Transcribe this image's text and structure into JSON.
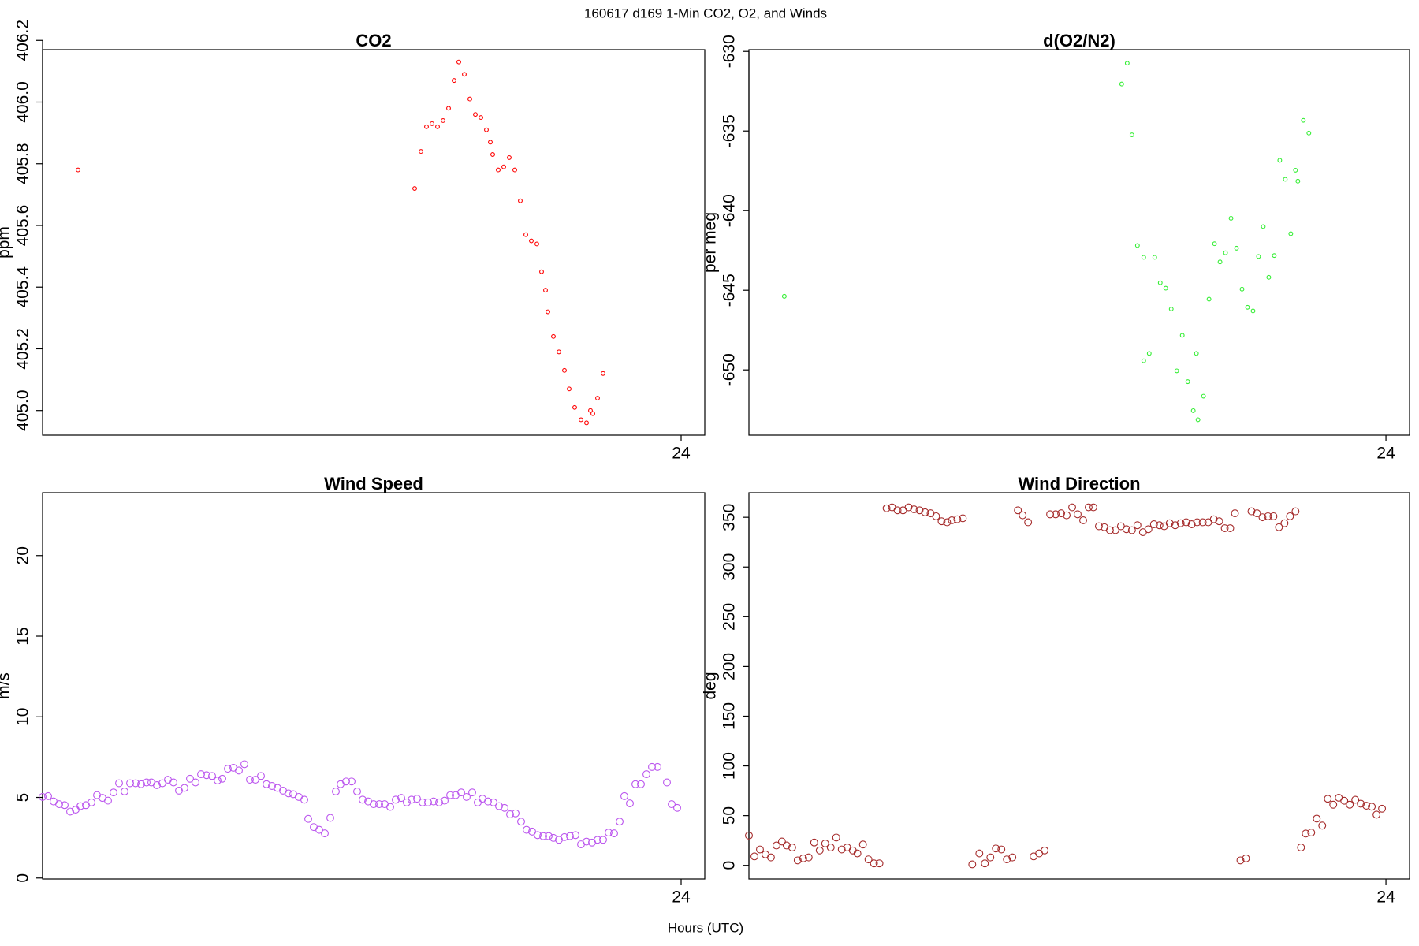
{
  "title": "160617   d169   1-Min CO2, O2, and Winds",
  "xlabel": "Hours (UTC)",
  "chart_data": [
    {
      "type": "scatter",
      "title": "CO2",
      "ylabel": "ppm",
      "color": "#ff0000",
      "xlim": [
        15.9,
        24.3
      ],
      "xticks": [
        24
      ],
      "ylim": [
        404.92,
        406.17
      ],
      "yticks": [
        {
          "value": 405,
          "label": "405.0"
        },
        405.2,
        405.4,
        405.6,
        405.8,
        {
          "value": 406,
          "label": "406.0"
        },
        406.2
      ],
      "x": [
        16.35,
        20.62,
        20.7,
        20.77,
        20.84,
        20.91,
        20.98,
        21.05,
        21.12,
        21.18,
        21.25,
        21.32,
        21.39,
        21.46,
        21.53,
        21.58,
        21.61,
        21.68,
        21.75,
        21.82,
        21.89,
        21.96,
        22.03,
        22.1,
        22.17,
        22.23,
        22.28,
        22.31,
        22.38,
        22.45,
        22.52,
        22.58,
        22.65,
        22.73,
        22.8,
        22.85,
        22.88,
        22.94,
        23.01
      ],
      "values": [
        405.78,
        405.72,
        405.84,
        405.92,
        405.93,
        405.92,
        405.94,
        405.98,
        406.07,
        406.13,
        406.09,
        406.01,
        405.96,
        405.95,
        405.91,
        405.87,
        405.83,
        405.78,
        405.79,
        405.82,
        405.78,
        405.68,
        405.57,
        405.55,
        405.54,
        405.45,
        405.39,
        405.32,
        405.24,
        405.19,
        405.13,
        405.07,
        405.01,
        404.97,
        404.96,
        405.0,
        404.99,
        405.04,
        405.12
      ]
    },
    {
      "type": "scatter",
      "title": "d(O2/N2)",
      "ylabel": "per meg",
      "color": "#33ee33",
      "xlim": [
        15.9,
        24.3
      ],
      "xticks": [
        24
      ],
      "ylim": [
        -654.1,
        -629.89
      ],
      "yticks": [
        -650,
        -645,
        -640,
        -635,
        -630
      ],
      "x": [
        16.35,
        20.64,
        20.71,
        20.77,
        20.84,
        20.92,
        20.92,
        20.99,
        21.06,
        21.13,
        21.2,
        21.27,
        21.34,
        21.41,
        21.48,
        21.55,
        21.59,
        21.61,
        21.68,
        21.75,
        21.82,
        21.89,
        21.96,
        22.03,
        22.1,
        22.17,
        22.24,
        22.31,
        22.38,
        22.44,
        22.51,
        22.58,
        22.65,
        22.72,
        22.79,
        22.85,
        22.88,
        22.95,
        23.02
      ],
      "values": [
        -645.38,
        -632.05,
        -630.74,
        -635.24,
        -642.19,
        -642.93,
        -649.43,
        -648.97,
        -642.93,
        -644.53,
        -644.87,
        -646.18,
        -650.06,
        -647.83,
        -650.74,
        -652.56,
        -648.97,
        -653.13,
        -651.65,
        -645.56,
        -642.08,
        -643.22,
        -642.65,
        -640.48,
        -642.36,
        -644.93,
        -646.07,
        -646.3,
        -642.88,
        -641.0,
        -644.19,
        -642.82,
        -636.84,
        -638.03,
        -641.45,
        -637.46,
        -638.15,
        -634.33,
        -635.13
      ]
    },
    {
      "type": "scatter",
      "title": "Wind Speed",
      "ylabel": "m/s",
      "color": "#bb55ee",
      "xlim": [
        15.9,
        24.3
      ],
      "xticks": [
        24
      ],
      "ylim": [
        -0.06,
        23.9
      ],
      "yticks": [
        0,
        5,
        10,
        15,
        20
      ],
      "x": [
        15.9,
        15.97,
        16.04,
        16.11,
        16.18,
        16.25,
        16.32,
        16.38,
        16.45,
        16.52,
        16.59,
        16.66,
        16.73,
        16.8,
        16.87,
        16.94,
        17.01,
        17.08,
        17.15,
        17.22,
        17.28,
        17.35,
        17.42,
        17.49,
        17.56,
        17.63,
        17.7,
        17.77,
        17.84,
        17.91,
        17.98,
        18.05,
        18.12,
        18.18,
        18.25,
        18.32,
        18.39,
        18.46,
        18.53,
        18.6,
        18.67,
        18.74,
        18.81,
        18.88,
        18.95,
        19.02,
        19.08,
        19.15,
        19.22,
        19.27,
        19.34,
        19.41,
        19.48,
        19.55,
        19.62,
        19.68,
        19.75,
        19.82,
        19.89,
        19.96,
        20.03,
        20.1,
        20.17,
        20.24,
        20.31,
        20.38,
        20.45,
        20.52,
        20.58,
        20.65,
        20.72,
        20.79,
        20.86,
        20.93,
        21.0,
        21.07,
        21.14,
        21.21,
        21.28,
        21.35,
        21.42,
        21.48,
        21.55,
        21.62,
        21.69,
        21.76,
        21.83,
        21.9,
        21.97,
        22.04,
        22.11,
        22.18,
        22.25,
        22.32,
        22.38,
        22.45,
        22.52,
        22.59,
        22.66,
        22.73,
        22.8,
        22.87,
        22.94,
        23.01,
        23.08,
        23.15,
        23.22,
        23.28,
        23.35,
        23.42,
        23.49,
        23.56,
        23.63,
        23.7,
        23.82,
        23.88,
        23.95
      ],
      "values": [
        5.03,
        5.08,
        4.75,
        4.58,
        4.52,
        4.12,
        4.24,
        4.46,
        4.52,
        4.69,
        5.14,
        4.97,
        4.8,
        5.31,
        5.88,
        5.37,
        5.88,
        5.88,
        5.82,
        5.93,
        5.93,
        5.76,
        5.88,
        6.1,
        5.93,
        5.42,
        5.59,
        6.16,
        5.93,
        6.44,
        6.38,
        6.33,
        6.05,
        6.16,
        6.78,
        6.84,
        6.67,
        7.06,
        6.1,
        6.1,
        6.33,
        5.82,
        5.71,
        5.59,
        5.42,
        5.25,
        5.2,
        5.03,
        4.86,
        3.67,
        3.16,
        2.99,
        2.77,
        3.73,
        5.37,
        5.82,
        5.99,
        5.99,
        5.37,
        4.86,
        4.75,
        4.58,
        4.58,
        4.58,
        4.41,
        4.86,
        4.97,
        4.69,
        4.86,
        4.92,
        4.69,
        4.69,
        4.75,
        4.69,
        4.8,
        5.14,
        5.14,
        5.31,
        5.03,
        5.31,
        4.69,
        4.92,
        4.75,
        4.69,
        4.46,
        4.35,
        3.95,
        4.01,
        3.5,
        2.99,
        2.88,
        2.66,
        2.6,
        2.6,
        2.49,
        2.37,
        2.54,
        2.6,
        2.66,
        2.09,
        2.26,
        2.2,
        2.37,
        2.37,
        2.82,
        2.77,
        3.5,
        5.08,
        4.63,
        5.82,
        5.82,
        6.44,
        6.89,
        6.89,
        5.93,
        4.58,
        4.35
      ]
    },
    {
      "type": "scatter",
      "title": "Wind Direction",
      "ylabel": "deg",
      "color": "#a52a2a",
      "xlim": [
        15.9,
        24.3
      ],
      "xticks": [
        24
      ],
      "ylim": [
        -13.7,
        374.7
      ],
      "yticks": [
        0,
        50,
        100,
        150,
        200,
        250,
        300,
        350
      ],
      "x": [
        15.9,
        15.97,
        16.04,
        16.11,
        16.18,
        16.25,
        16.32,
        16.38,
        16.45,
        16.52,
        16.59,
        16.66,
        16.73,
        16.8,
        16.87,
        16.94,
        17.01,
        17.08,
        17.15,
        17.22,
        17.28,
        17.35,
        17.42,
        17.49,
        17.56,
        17.65,
        17.72,
        17.79,
        17.86,
        17.93,
        18.0,
        18.07,
        18.14,
        18.21,
        18.28,
        18.35,
        18.42,
        18.48,
        18.55,
        18.62,
        18.74,
        18.83,
        18.9,
        18.97,
        19.04,
        19.11,
        19.18,
        19.25,
        19.32,
        19.38,
        19.45,
        19.52,
        19.59,
        19.66,
        19.73,
        19.8,
        19.87,
        19.94,
        20.01,
        20.08,
        20.15,
        20.22,
        20.28,
        20.35,
        20.42,
        20.49,
        20.56,
        20.63,
        20.7,
        20.77,
        20.84,
        20.91,
        20.98,
        21.05,
        21.12,
        21.18,
        21.25,
        21.32,
        21.39,
        21.46,
        21.53,
        21.6,
        21.67,
        21.74,
        21.81,
        21.88,
        21.95,
        22.02,
        22.08,
        22.15,
        22.22,
        22.29,
        22.36,
        22.43,
        22.5,
        22.57,
        22.64,
        22.71,
        22.78,
        22.85,
        22.92,
        22.98,
        23.05,
        23.12,
        23.19,
        23.26,
        23.33,
        23.4,
        23.47,
        23.54,
        23.61,
        23.68,
        23.75,
        23.82,
        23.88,
        23.95
      ],
      "values": [
        30,
        9,
        16,
        11,
        8,
        20,
        24,
        20,
        18,
        5,
        7,
        8,
        23,
        15,
        22,
        18,
        28,
        16,
        18,
        15,
        12,
        21,
        6,
        2,
        2,
        359,
        360,
        357,
        357,
        360,
        358,
        357,
        355,
        354,
        351,
        346,
        345,
        347,
        348,
        349,
        1,
        12,
        2,
        8,
        17,
        16,
        6,
        8,
        357,
        352,
        345,
        9,
        12,
        15,
        353,
        353,
        354,
        352,
        360,
        353,
        347,
        360,
        360,
        341,
        340,
        337,
        337,
        341,
        338,
        337,
        342,
        335,
        338,
        343,
        342,
        341,
        344,
        342,
        344,
        345,
        343,
        345,
        345,
        345,
        348,
        346,
        339,
        339,
        354,
        5,
        7,
        356,
        354,
        350,
        351,
        351,
        340,
        344,
        351,
        356,
        18,
        32,
        33,
        47,
        40,
        67,
        61,
        68,
        65,
        61,
        66,
        62,
        60,
        59,
        51,
        57
      ]
    }
  ]
}
